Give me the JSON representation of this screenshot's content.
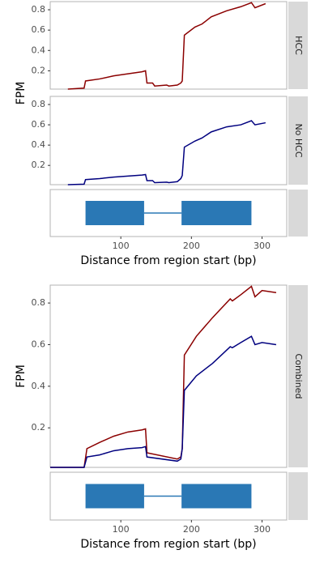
{
  "chart_data": [
    {
      "type": "line",
      "strip": "HCC",
      "ylabel": "FPM",
      "xlim": [
        0,
        335
      ],
      "ylim": [
        0.02,
        0.88
      ],
      "yticks": [
        0.2,
        0.4,
        0.6,
        0.8
      ],
      "x": [
        25,
        48,
        50,
        70,
        90,
        110,
        130,
        135,
        137,
        145,
        148,
        165,
        168,
        180,
        185,
        187,
        190,
        205,
        215,
        228,
        250,
        270,
        285,
        290,
        305
      ],
      "series": [
        {
          "color": "#8b0000",
          "values": [
            0.02,
            0.03,
            0.1,
            0.12,
            0.15,
            0.17,
            0.19,
            0.2,
            0.08,
            0.08,
            0.05,
            0.06,
            0.05,
            0.06,
            0.08,
            0.1,
            0.55,
            0.63,
            0.66,
            0.73,
            0.79,
            0.83,
            0.87,
            0.82,
            0.86
          ]
        }
      ]
    },
    {
      "type": "line",
      "strip": "No HCC",
      "xlim": [
        0,
        335
      ],
      "ylim": [
        0.01,
        0.88
      ],
      "yticks": [
        0.2,
        0.4,
        0.6,
        0.8
      ],
      "x": [
        25,
        48,
        50,
        70,
        90,
        110,
        130,
        135,
        137,
        145,
        148,
        165,
        168,
        180,
        185,
        187,
        190,
        205,
        215,
        228,
        250,
        270,
        285,
        290,
        305
      ],
      "series": [
        {
          "color": "#00007f",
          "values": [
            0.01,
            0.015,
            0.06,
            0.07,
            0.085,
            0.095,
            0.105,
            0.11,
            0.05,
            0.05,
            0.03,
            0.035,
            0.03,
            0.04,
            0.07,
            0.1,
            0.38,
            0.44,
            0.47,
            0.53,
            0.58,
            0.6,
            0.64,
            0.6,
            0.62
          ]
        }
      ]
    },
    {
      "type": "gene",
      "xlim": [
        0,
        335
      ],
      "xticks": [
        100,
        200,
        300
      ],
      "xlabel": "Distance from region start (bp)",
      "color": "#2a78b5",
      "exons": [
        [
          50,
          133
        ],
        [
          186,
          285
        ]
      ]
    },
    {
      "type": "line",
      "strip": "Combined",
      "ylabel": "FPM",
      "xlim": [
        0,
        335
      ],
      "ylim": [
        0.01,
        0.886
      ],
      "yticks": [
        0.2,
        0.4,
        0.6,
        0.8
      ],
      "x": [
        0,
        48,
        52,
        70,
        90,
        110,
        130,
        135,
        137,
        180,
        185,
        187,
        190,
        207,
        230,
        255,
        258,
        270,
        285,
        290,
        300,
        320
      ],
      "series": [
        {
          "color": "#8b0000",
          "values": [
            0.01,
            0.01,
            0.1,
            0.13,
            0.16,
            0.18,
            0.19,
            0.195,
            0.08,
            0.05,
            0.06,
            0.1,
            0.55,
            0.64,
            0.73,
            0.82,
            0.81,
            0.84,
            0.88,
            0.83,
            0.86,
            0.85
          ]
        },
        {
          "color": "#00007f",
          "values": [
            0.01,
            0.01,
            0.06,
            0.07,
            0.09,
            0.1,
            0.105,
            0.11,
            0.06,
            0.04,
            0.05,
            0.1,
            0.38,
            0.45,
            0.51,
            0.59,
            0.585,
            0.61,
            0.64,
            0.6,
            0.61,
            0.6
          ]
        }
      ]
    },
    {
      "type": "gene",
      "xlim": [
        0,
        335
      ],
      "xticks": [
        100,
        200,
        300
      ],
      "xlabel": "Distance from region start (bp)",
      "color": "#2a78b5",
      "exons": [
        [
          50,
          133
        ],
        [
          186,
          285
        ]
      ]
    }
  ]
}
